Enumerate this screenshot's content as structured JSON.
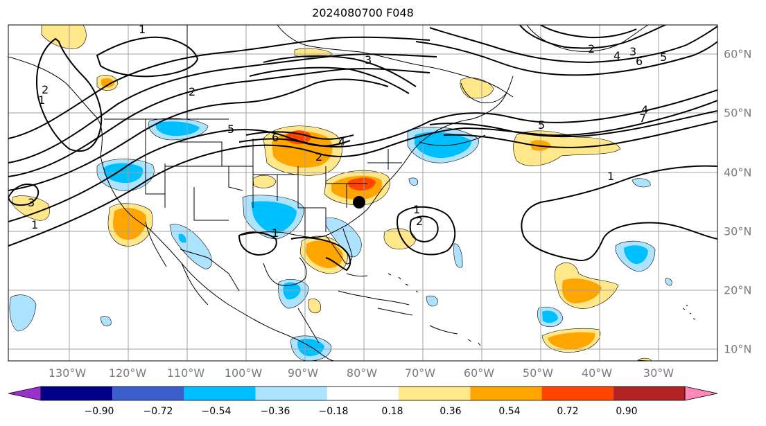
{
  "title": "2024080700 F048",
  "longitude_labels": [
    "130°W",
    "120°W",
    "110°W",
    "100°W",
    "90°W",
    "80°W",
    "70°W",
    "60°W",
    "50°W",
    "40°W",
    "30°W"
  ],
  "latitude_labels": [
    "60°N",
    "50°N",
    "40°N",
    "30°N",
    "20°N",
    "10°N"
  ],
  "colorbar": {
    "ticks": [
      "−0.90",
      "−0.72",
      "−0.54",
      "−0.36",
      "−0.18",
      "0.18",
      "0.36",
      "0.54",
      "0.72",
      "0.90"
    ],
    "colors": [
      "#9932cc",
      "#00008b",
      "#3a5fcd",
      "#00bfff",
      "#aee3ff",
      "#ffffff",
      "#ffe78a",
      "#ffa500",
      "#ff4500",
      "#b22222",
      "#ff88b8"
    ]
  },
  "contour_labels": [
    "1",
    "2",
    "3",
    "4",
    "5",
    "6",
    "1",
    "2",
    "3",
    "4",
    "5",
    "6",
    "1",
    "2",
    "1",
    "2",
    "3",
    "1",
    "2",
    "1",
    "5",
    "7",
    "4"
  ],
  "colors": {
    "grid": "#a0a0a0",
    "contour": "#000000",
    "coast": "#000000"
  },
  "marker": {
    "label": "storm-position"
  }
}
